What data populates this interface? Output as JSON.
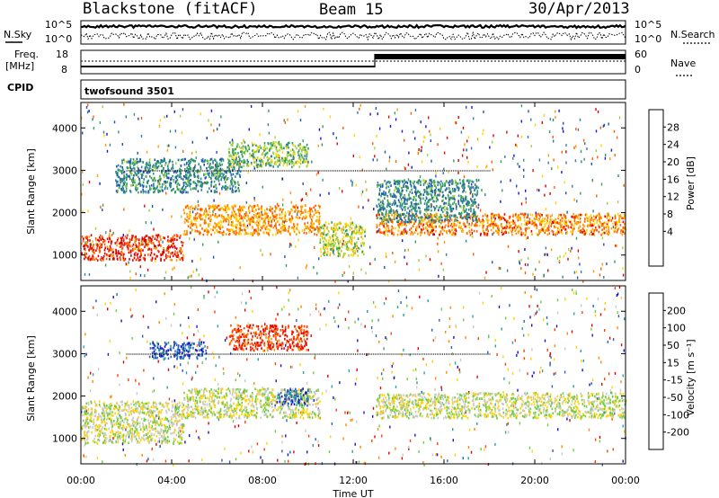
{
  "header": {
    "station_title": "Blackstone (fitACF)",
    "beam_label": "Beam 15",
    "date_label": "30/Apr/2013"
  },
  "top_panels": {
    "nsky_label": "N.Sky",
    "nsearch_label": "N.Search",
    "count_ticks": [
      "10^5",
      "10^0"
    ],
    "freq_label_1": "Freq.",
    "freq_label_2": "[MHz]",
    "freq_ticks": [
      "18",
      "8"
    ],
    "nave_label": "Nave",
    "nave_ticks": [
      "60",
      "0"
    ],
    "cpid_label": "CPID",
    "cpid_value": "twofsound 3501"
  },
  "chart_data": [
    {
      "type": "heatmap",
      "name": "power",
      "ylabel": "Slant Range [km]",
      "xlabel": "Time UT",
      "x_ticks": [
        "00:00",
        "04:00",
        "08:00",
        "12:00",
        "16:00",
        "20:00",
        "00:00"
      ],
      "x_range_hours": [
        0,
        24
      ],
      "y_ticks": [
        1000,
        2000,
        3000,
        4000
      ],
      "y_range_km": [
        400,
        4600
      ],
      "colorbar_label": "Power [dB]",
      "colorbar_ticks": [
        28,
        24,
        20,
        16,
        12,
        8,
        4
      ],
      "colorbar_colors": [
        "#e00000",
        "#ff5a00",
        "#ff9a00",
        "#ffd400",
        "#9fd13c",
        "#2f9e5a",
        "#2d7f9e",
        "#1e4fb8",
        "#1515e0"
      ],
      "bands": [
        {
          "t0": 0.0,
          "t1": 4.5,
          "r0": 900,
          "r1": 1500,
          "level": 0.95
        },
        {
          "t0": 4.5,
          "t1": 10.5,
          "r0": 1500,
          "r1": 2200,
          "level": 0.75
        },
        {
          "t0": 10.5,
          "t1": 12.5,
          "r0": 1000,
          "r1": 1800,
          "level": 0.55
        },
        {
          "t0": 13.0,
          "t1": 24.0,
          "r0": 1500,
          "r1": 2000,
          "level": 0.8
        },
        {
          "t0": 1.5,
          "t1": 7.0,
          "r0": 2500,
          "r1": 3300,
          "level": 0.3
        },
        {
          "t0": 6.5,
          "t1": 10.0,
          "r0": 3100,
          "r1": 3700,
          "level": 0.45
        },
        {
          "t0": 13.0,
          "t1": 17.5,
          "r0": 1800,
          "r1": 2800,
          "level": 0.3
        }
      ]
    },
    {
      "type": "heatmap",
      "name": "velocity",
      "ylabel": "Slant Range [km]",
      "xlabel": "Time UT",
      "x_ticks": [
        "00:00",
        "04:00",
        "08:00",
        "12:00",
        "16:00",
        "20:00",
        "00:00"
      ],
      "x_range_hours": [
        0,
        24
      ],
      "y_ticks": [
        1000,
        2000,
        3000,
        4000
      ],
      "y_range_km": [
        400,
        4600
      ],
      "colorbar_label": "Velocity [m s⁻¹]",
      "colorbar_ticks": [
        200,
        100,
        50,
        15,
        -15,
        -50,
        -100,
        -200
      ],
      "colorbar_colors": [
        "#1515c8",
        "#2a5fc0",
        "#2aa0a0",
        "#6ccf3a",
        "#c9c9c9",
        "#ffd200",
        "#ff8a00",
        "#ff4000",
        "#e00000"
      ],
      "bands": [
        {
          "t0": 0.0,
          "t1": 4.5,
          "r0": 900,
          "r1": 1900,
          "level": 0.5
        },
        {
          "t0": 4.5,
          "t1": 10.5,
          "r0": 1500,
          "r1": 2200,
          "level": 0.5
        },
        {
          "t0": 8.5,
          "t1": 10.0,
          "r0": 1800,
          "r1": 2200,
          "level": 0.85
        },
        {
          "t0": 3.0,
          "t1": 5.5,
          "r0": 2900,
          "r1": 3300,
          "level": 0.9
        },
        {
          "t0": 6.5,
          "t1": 10.0,
          "r0": 3100,
          "r1": 3700,
          "level": 0.1
        },
        {
          "t0": 13.0,
          "t1": 24.0,
          "r0": 1500,
          "r1": 2100,
          "level": 0.5
        }
      ]
    }
  ]
}
